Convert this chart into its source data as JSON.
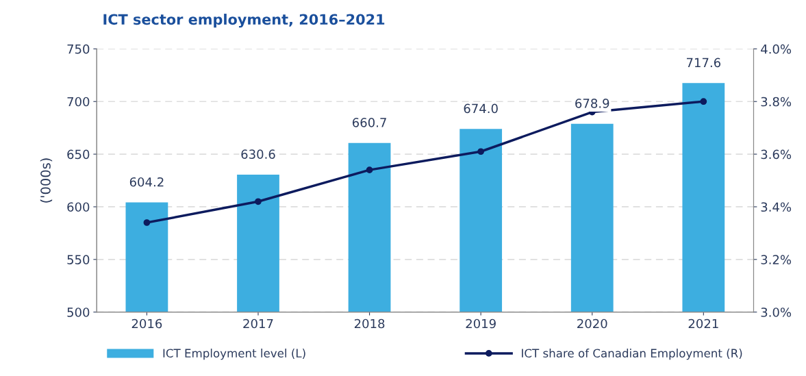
{
  "chart_data": {
    "type": "bar",
    "title": "ICT sector employment, 2016–2021",
    "ylabel": "('000s)",
    "categories": [
      "2016",
      "2017",
      "2018",
      "2019",
      "2020",
      "2021"
    ],
    "series": [
      {
        "name": "ICT Employment level (L)",
        "color": "#3daee0",
        "values": [
          604.2,
          630.6,
          660.7,
          674.0,
          678.9,
          717.6
        ],
        "value_labels": [
          "604.2",
          "630.6",
          "660.7",
          "674.0",
          "678.9",
          "717.6"
        ]
      },
      {
        "name": "ICT share of Canadian Employment (R)",
        "type": "line",
        "axis": "y2",
        "color": "#0d1b5e",
        "marker": "circle",
        "values": [
          3.34,
          3.42,
          3.54,
          3.61,
          3.76,
          3.8
        ]
      }
    ],
    "ylim": [
      500,
      750
    ],
    "yticks": [
      500,
      550,
      600,
      650,
      700,
      750
    ],
    "y2lim": [
      3.0,
      4.0
    ],
    "y2ticks": [
      {
        "value": 3.0,
        "label": "3.0%"
      },
      {
        "value": 3.2,
        "label": "3.2%"
      },
      {
        "value": 3.4,
        "label": "3.4%"
      },
      {
        "value": 3.6,
        "label": "3.6%"
      },
      {
        "value": 3.8,
        "label": "3.8%"
      },
      {
        "value": 4.0,
        "label": "4.0%"
      }
    ],
    "grid": "y",
    "legend": "bottom"
  }
}
